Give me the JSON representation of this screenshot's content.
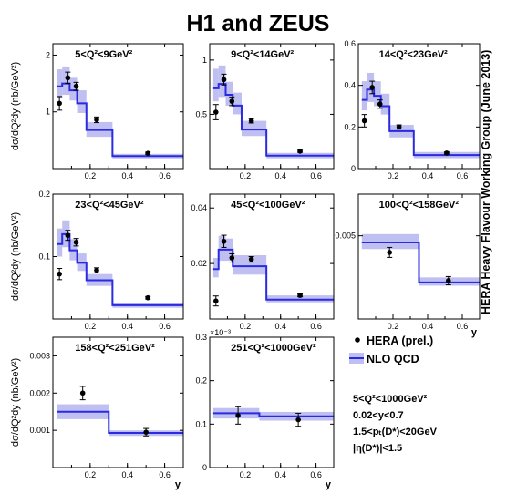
{
  "figure": {
    "title": "H1 and ZEUS",
    "side_label": "HERA Heavy Flavour Working Group  (June 2013)"
  },
  "legend": {
    "data_label": "HERA (prel.)",
    "theory_label": "NLO QCD",
    "cuts": [
      "5<Q²<1000GeV²",
      "0.02<y<0.7",
      "1.5<pₜ(D*)<20GeV",
      "|η(D*)|<1.5"
    ]
  },
  "colors": {
    "band": "#bfbff2",
    "prediction_line": "#2a2ae0",
    "data_points": "#000000"
  },
  "chart_data": [
    {
      "type": "line",
      "title": "5<Q²<9GeV²",
      "xlabel": "",
      "ylabel": "dσ/dQ²dy (nb/GeV²)",
      "xlim": [
        0.0,
        0.7
      ],
      "ylim": [
        0.0,
        2.2
      ],
      "xticks": [
        "0.2",
        "0.4",
        "0.6"
      ],
      "yticks": [
        "1",
        "2"
      ],
      "yscale_label": "",
      "series": [
        {
          "name": "NLO QCD",
          "kind": "step",
          "edges": [
            0.02,
            0.05,
            0.09,
            0.13,
            0.18,
            0.32,
            0.7
          ],
          "values": [
            1.45,
            1.5,
            1.38,
            1.15,
            0.68,
            0.22
          ],
          "band_low": [
            1.25,
            1.3,
            1.2,
            0.98,
            0.56,
            0.18
          ],
          "band_high": [
            1.75,
            1.8,
            1.6,
            1.38,
            0.82,
            0.26
          ]
        },
        {
          "name": "HERA (prel.)",
          "kind": "points",
          "x": [
            0.035,
            0.08,
            0.125,
            0.235,
            0.51
          ],
          "y": [
            1.15,
            1.6,
            1.45,
            0.86,
            0.27
          ],
          "err": [
            0.12,
            0.1,
            0.07,
            0.05,
            0.02
          ]
        }
      ]
    },
    {
      "type": "line",
      "title": "9<Q²<14GeV²",
      "xlabel": "",
      "ylabel": "",
      "xlim": [
        0.0,
        0.7
      ],
      "ylim": [
        0.0,
        1.15
      ],
      "xticks": [
        "0.2",
        "0.4",
        "0.6"
      ],
      "yticks": [
        "0.5",
        "1"
      ],
      "yscale_label": "",
      "series": [
        {
          "name": "NLO QCD",
          "kind": "step",
          "edges": [
            0.02,
            0.05,
            0.09,
            0.13,
            0.18,
            0.32,
            0.7
          ],
          "values": [
            0.74,
            0.78,
            0.68,
            0.58,
            0.36,
            0.12
          ],
          "band_low": [
            0.62,
            0.66,
            0.58,
            0.5,
            0.3,
            0.095
          ],
          "band_high": [
            0.92,
            0.95,
            0.8,
            0.7,
            0.44,
            0.145
          ]
        },
        {
          "name": "HERA (prel.)",
          "kind": "points",
          "x": [
            0.035,
            0.08,
            0.125,
            0.235,
            0.51
          ],
          "y": [
            0.52,
            0.82,
            0.62,
            0.44,
            0.16
          ],
          "err": [
            0.07,
            0.05,
            0.04,
            0.02,
            0.01
          ]
        }
      ]
    },
    {
      "type": "line",
      "title": "14<Q²<23GeV²",
      "xlabel": "",
      "ylabel": "",
      "xlim": [
        0.0,
        0.7
      ],
      "ylim": [
        0.0,
        0.6
      ],
      "xticks": [
        "0.2",
        "0.4",
        "0.6"
      ],
      "yticks": [
        "0",
        "0.2",
        "0.4",
        "0.6"
      ],
      "yscale_label": "",
      "series": [
        {
          "name": "NLO QCD",
          "kind": "step",
          "edges": [
            0.02,
            0.05,
            0.09,
            0.13,
            0.18,
            0.32,
            0.7
          ],
          "values": [
            0.33,
            0.38,
            0.35,
            0.3,
            0.18,
            0.065
          ],
          "band_low": [
            0.28,
            0.32,
            0.3,
            0.26,
            0.15,
            0.05
          ],
          "band_high": [
            0.42,
            0.46,
            0.42,
            0.36,
            0.21,
            0.08
          ]
        },
        {
          "name": "HERA (prel.)",
          "kind": "points",
          "x": [
            0.035,
            0.08,
            0.125,
            0.235,
            0.51
          ],
          "y": [
            0.23,
            0.39,
            0.31,
            0.2,
            0.075
          ],
          "err": [
            0.03,
            0.03,
            0.02,
            0.01,
            0.005
          ]
        }
      ]
    },
    {
      "type": "line",
      "title": "23<Q²<45GeV²",
      "xlabel": "",
      "ylabel": "dσ/dQ²dy (nb/GeV²)",
      "xlim": [
        0.0,
        0.7
      ],
      "ylim": [
        0.0,
        0.2
      ],
      "xticks": [
        "0.2",
        "0.4",
        "0.6"
      ],
      "yticks": [
        "0.1",
        "0.2"
      ],
      "yscale_label": "",
      "series": [
        {
          "name": "NLO QCD",
          "kind": "step",
          "edges": [
            0.02,
            0.05,
            0.09,
            0.13,
            0.18,
            0.32,
            0.7
          ],
          "values": [
            0.12,
            0.136,
            0.11,
            0.09,
            0.062,
            0.022
          ],
          "band_low": [
            0.1,
            0.115,
            0.094,
            0.077,
            0.053,
            0.018
          ],
          "band_high": [
            0.145,
            0.158,
            0.128,
            0.105,
            0.072,
            0.026
          ]
        },
        {
          "name": "HERA (prel.)",
          "kind": "points",
          "x": [
            0.035,
            0.08,
            0.125,
            0.235,
            0.51
          ],
          "y": [
            0.072,
            0.134,
            0.123,
            0.078,
            0.034
          ],
          "err": [
            0.009,
            0.008,
            0.006,
            0.004,
            0.002
          ]
        }
      ]
    },
    {
      "type": "line",
      "title": "45<Q²<100GeV²",
      "xlabel": "",
      "ylabel": "",
      "xlim": [
        0.0,
        0.7
      ],
      "ylim": [
        0.0,
        0.045
      ],
      "xticks": [
        "0.2",
        "0.4",
        "0.6"
      ],
      "yticks": [
        "0.02",
        "0.04"
      ],
      "yscale_label": "",
      "series": [
        {
          "name": "NLO QCD",
          "kind": "step",
          "edges": [
            0.02,
            0.05,
            0.09,
            0.13,
            0.18,
            0.32,
            0.7
          ],
          "values": [
            0.018,
            0.025,
            0.025,
            0.019,
            0.019,
            0.007
          ],
          "band_low": [
            0.015,
            0.021,
            0.021,
            0.016,
            0.016,
            0.006
          ],
          "band_high": [
            0.022,
            0.03,
            0.029,
            0.023,
            0.023,
            0.0085
          ]
        },
        {
          "name": "HERA (prel.)",
          "kind": "points",
          "x": [
            0.035,
            0.08,
            0.125,
            0.235,
            0.51
          ],
          "y": [
            0.0065,
            0.028,
            0.022,
            0.0215,
            0.0085
          ],
          "err": [
            0.0018,
            0.0022,
            0.0015,
            0.001,
            0.0005
          ]
        }
      ]
    },
    {
      "type": "line",
      "title": "100<Q²<158GeV²",
      "xlabel": "y",
      "ylabel": "",
      "xlim": [
        0.0,
        0.7
      ],
      "ylim": [
        0.0,
        0.0075
      ],
      "xticks": [
        "0.2",
        "0.4",
        "0.6"
      ],
      "yticks": [
        "0.005"
      ],
      "yscale_label": "",
      "series": [
        {
          "name": "NLO QCD",
          "kind": "step",
          "edges": [
            0.02,
            0.35,
            0.7
          ],
          "values": [
            0.0046,
            0.0022
          ],
          "band_low": [
            0.0042,
            0.002
          ],
          "band_high": [
            0.0051,
            0.0025
          ]
        },
        {
          "name": "HERA (prel.)",
          "kind": "points",
          "x": [
            0.18,
            0.52
          ],
          "y": [
            0.004,
            0.0023
          ],
          "err": [
            0.0003,
            0.00025
          ]
        }
      ]
    },
    {
      "type": "line",
      "title": "158<Q²<251GeV²",
      "xlabel": "y",
      "ylabel": "dσ/dQ²dy (nb/GeV²)",
      "xlim": [
        0.0,
        0.7
      ],
      "ylim": [
        0.0,
        0.0035
      ],
      "xticks": [
        "0.2",
        "0.4",
        "0.6"
      ],
      "yticks": [
        "0.001",
        "0.002",
        "0.003"
      ],
      "yscale_label": "",
      "series": [
        {
          "name": "NLO QCD",
          "kind": "step",
          "edges": [
            0.02,
            0.3,
            0.7
          ],
          "values": [
            0.0015,
            0.00093
          ],
          "band_low": [
            0.0013,
            0.00085
          ],
          "band_high": [
            0.0017,
            0.001
          ]
        },
        {
          "name": "HERA (prel.)",
          "kind": "points",
          "x": [
            0.16,
            0.5
          ],
          "y": [
            0.002,
            0.00095
          ],
          "err": [
            0.00018,
            0.0001
          ]
        }
      ]
    },
    {
      "type": "line",
      "title": "251<Q²<1000GeV²",
      "xlabel": "y",
      "ylabel": "",
      "xlim": [
        0.0,
        0.7
      ],
      "ylim": [
        0.0,
        0.3
      ],
      "xticks": [
        "0.2",
        "0.4",
        "0.6"
      ],
      "yticks": [
        "0",
        "0.1",
        "0.2",
        "0.3"
      ],
      "yscale_label": "×10⁻³",
      "series": [
        {
          "name": "NLO QCD",
          "kind": "step",
          "edges": [
            0.02,
            0.28,
            0.7
          ],
          "values": [
            0.125,
            0.118
          ],
          "band_low": [
            0.113,
            0.108
          ],
          "band_high": [
            0.137,
            0.128
          ]
        },
        {
          "name": "HERA (prel.)",
          "kind": "points",
          "x": [
            0.16,
            0.5
          ],
          "y": [
            0.12,
            0.11
          ],
          "err": [
            0.02,
            0.015
          ]
        }
      ]
    }
  ]
}
